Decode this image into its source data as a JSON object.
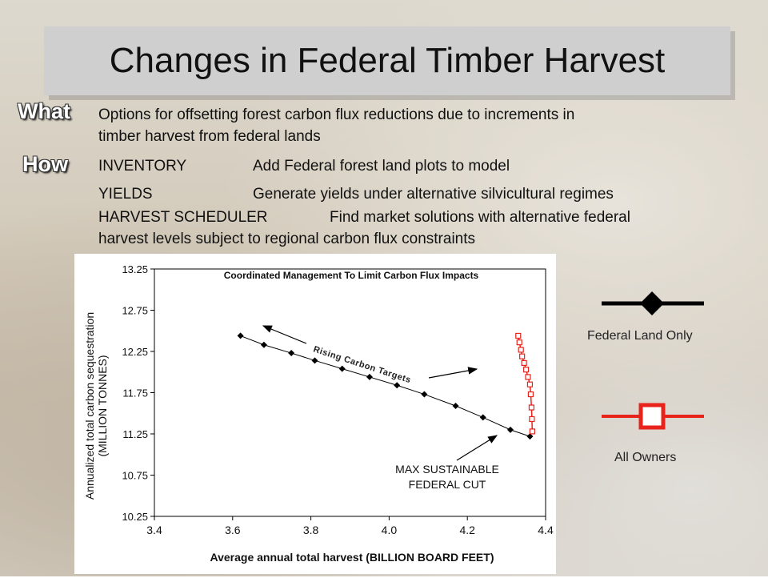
{
  "slide": {
    "title": "Changes in Federal Timber Harvest",
    "what_label": "What",
    "what_text_1": "Options for offsetting forest carbon flux reductions due to increments in",
    "what_text_2": "timber harvest from federal lands",
    "how_label": "How",
    "inventory_label": "INVENTORY",
    "inventory_text": "Add Federal forest land plots to model",
    "yields_label": "YIELDS",
    "yields_text": "Generate yields under alternative silvicultural regimes",
    "harvest_label": "HARVEST SCHEDULER",
    "harvest_text": "Find market solutions with alternative federal",
    "harvest_text_2": "harvest levels subject to regional carbon flux constraints"
  },
  "legend": {
    "federal_label": "Federal Land Only",
    "all_owners_label": "All Owners",
    "federal_color": "#000000",
    "all_owners_color": "#e8231b"
  },
  "chart_data": {
    "type": "line",
    "title": "Coordinated Management To Limit Carbon Flux Impacts",
    "xlabel": "Average annual total harvest (BILLION BOARD FEET)",
    "ylabel_line1": "Annualized total carbon sequestration",
    "ylabel_line2": "(MILLION TONNES)",
    "xlim": [
      3.4,
      4.4
    ],
    "ylim": [
      10.25,
      13.25
    ],
    "xticks": [
      "3.4",
      "3.6",
      "3.8",
      "4.0",
      "4.2",
      "4.4"
    ],
    "yticks": [
      "13.25",
      "12.75",
      "12.25",
      "11.75",
      "11.25",
      "10.75",
      "10.25"
    ],
    "series": [
      {
        "name": "Federal Land Only",
        "marker": "diamond",
        "color": "#000000",
        "x": [
          3.62,
          3.68,
          3.75,
          3.81,
          3.88,
          3.95,
          4.02,
          4.09,
          4.17,
          4.24,
          4.31,
          4.36
        ],
        "y": [
          12.44,
          12.33,
          12.23,
          12.14,
          12.04,
          11.94,
          11.84,
          11.73,
          11.59,
          11.45,
          11.3,
          11.22
        ]
      },
      {
        "name": "All Owners",
        "marker": "square",
        "color": "#e8231b",
        "x": [
          4.33,
          4.333,
          4.337,
          4.34,
          4.345,
          4.35,
          4.355,
          4.36,
          4.362,
          4.364,
          4.365,
          4.366
        ],
        "y": [
          12.44,
          12.36,
          12.27,
          12.19,
          12.11,
          12.03,
          11.94,
          11.85,
          11.73,
          11.57,
          11.43,
          11.28
        ]
      }
    ],
    "annotations": {
      "rising": "Rising Carbon Targets",
      "max_line1": "MAX SUSTAINABLE",
      "max_line2": "FEDERAL CUT"
    }
  }
}
